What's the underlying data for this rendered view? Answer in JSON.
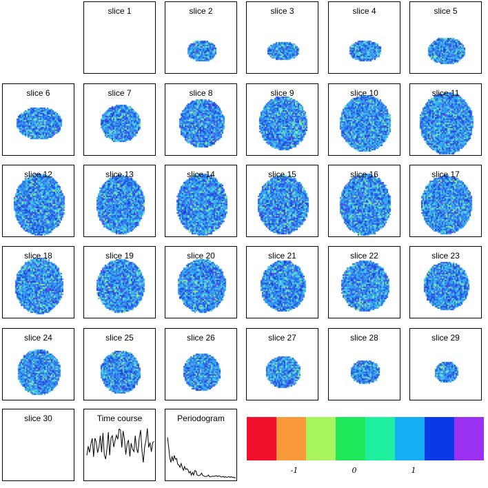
{
  "slices": [
    {
      "label": "slice 1"
    },
    {
      "label": "slice 2"
    },
    {
      "label": "slice 3"
    },
    {
      "label": "slice 4"
    },
    {
      "label": "slice 5"
    },
    {
      "label": "slice 6"
    },
    {
      "label": "slice 7"
    },
    {
      "label": "slice 8"
    },
    {
      "label": "slice 9"
    },
    {
      "label": "slice 10"
    },
    {
      "label": "slice 11"
    },
    {
      "label": "slice 12"
    },
    {
      "label": "slice 13"
    },
    {
      "label": "slice 14"
    },
    {
      "label": "slice 15"
    },
    {
      "label": "slice 16"
    },
    {
      "label": "slice 17"
    },
    {
      "label": "slice 18"
    },
    {
      "label": "slice 19"
    },
    {
      "label": "slice 20"
    },
    {
      "label": "slice 21"
    },
    {
      "label": "slice 22"
    },
    {
      "label": "slice 23"
    },
    {
      "label": "slice 24"
    },
    {
      "label": "slice 25"
    },
    {
      "label": "slice 26"
    },
    {
      "label": "slice 27"
    },
    {
      "label": "slice 28"
    },
    {
      "label": "slice 29"
    },
    {
      "label": "slice 30"
    }
  ],
  "time_course": {
    "label": "Time course"
  },
  "periodogram": {
    "label": "Periodogram"
  },
  "colorbar": {
    "colors": [
      "#f0102c",
      "#f89a3c",
      "#a8f560",
      "#1ee85a",
      "#1ef0a0",
      "#14aef5",
      "#0a3ae6",
      "#9a30f0"
    ],
    "ticks": [
      "-1",
      "0",
      "1"
    ]
  }
}
